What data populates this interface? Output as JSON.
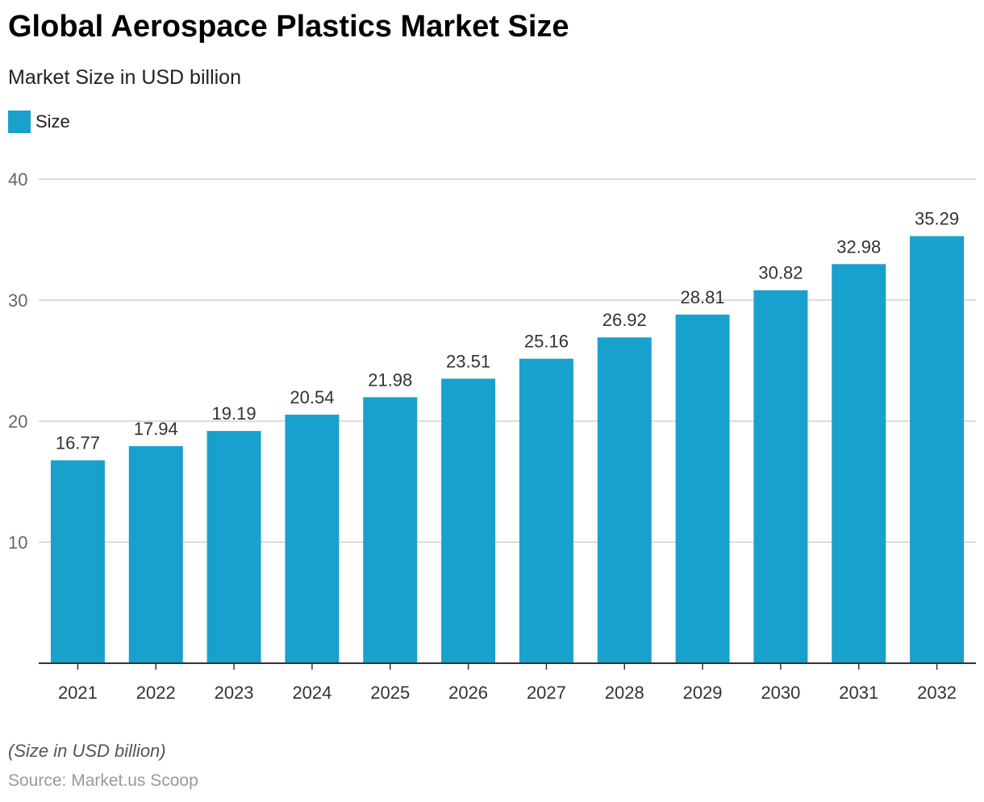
{
  "chart_data": {
    "type": "bar",
    "title": "Global Aerospace Plastics Market Size",
    "subtitle": "Market Size in USD billion",
    "categories": [
      "2021",
      "2022",
      "2023",
      "2024",
      "2025",
      "2026",
      "2027",
      "2028",
      "2029",
      "2030",
      "2031",
      "2032"
    ],
    "series": [
      {
        "name": "Size",
        "values": [
          16.77,
          17.94,
          19.19,
          20.54,
          21.98,
          23.51,
          25.16,
          26.92,
          28.81,
          30.82,
          32.98,
          35.29
        ],
        "color": "#19a1cd"
      }
    ],
    "ylim": [
      0,
      40
    ],
    "yticks": [
      10,
      20,
      30,
      40
    ],
    "grid": true,
    "legend_position": "top-left",
    "note": "(Size in USD billion)",
    "source": "Source: Market.us Scoop"
  }
}
